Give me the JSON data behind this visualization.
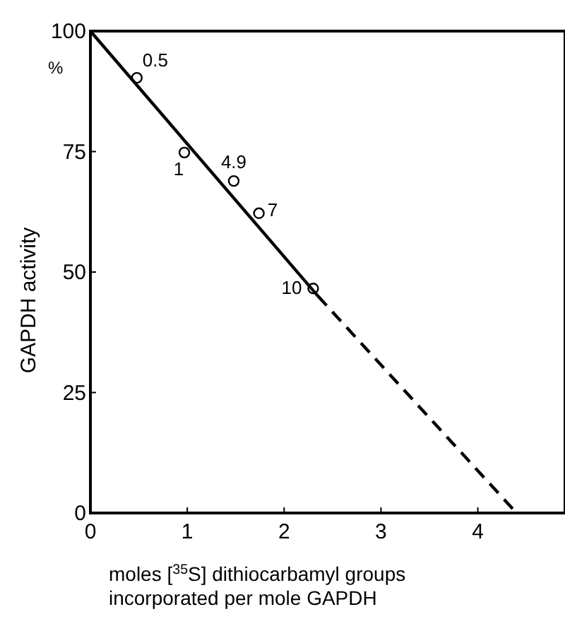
{
  "chart_data": {
    "type": "scatter",
    "xlabel": "moles [$^{35}$S] dithiocarbamyl groups\nincorporated per mole GAPDH",
    "ylabel": "GAPDH activity",
    "xlim": [
      0,
      4.9
    ],
    "ylim": [
      0,
      100
    ],
    "xticks": [
      0,
      1,
      2,
      3,
      4
    ],
    "yticks": [
      0,
      25,
      50,
      75,
      100
    ],
    "grid": false,
    "marker": "circle",
    "series": [
      {
        "color": "#000000",
        "x": [
          0.48,
          0.97,
          1.48,
          1.74,
          2.3
        ],
        "values": [
          90.3,
          74.8,
          68.9,
          62.2,
          46.6
        ]
      },
      {
        "type": "line",
        "color": "#000000",
        "line_style": "solid",
        "marker": "none",
        "x": [
          0,
          2.35
        ],
        "values": [
          100,
          45
        ]
      },
      {
        "type": "line",
        "color": "#000000",
        "line_style": "dashed",
        "marker": "none",
        "x": [
          2.35,
          4.4
        ],
        "values": [
          45,
          0
        ]
      }
    ],
    "annotations": [
      "%",
      {
        "text": "0.5",
        "x": 0.48,
        "y": 90.3
      },
      {
        "text": "1",
        "x": 0.97,
        "y": 74.8
      },
      {
        "text": "4.9",
        "x": 1.48,
        "y": 68.9
      },
      {
        "text": "7",
        "x": 1.74,
        "y": 62.2
      },
      {
        "text": "10",
        "x": 2.3,
        "y": 46.6
      }
    ]
  }
}
